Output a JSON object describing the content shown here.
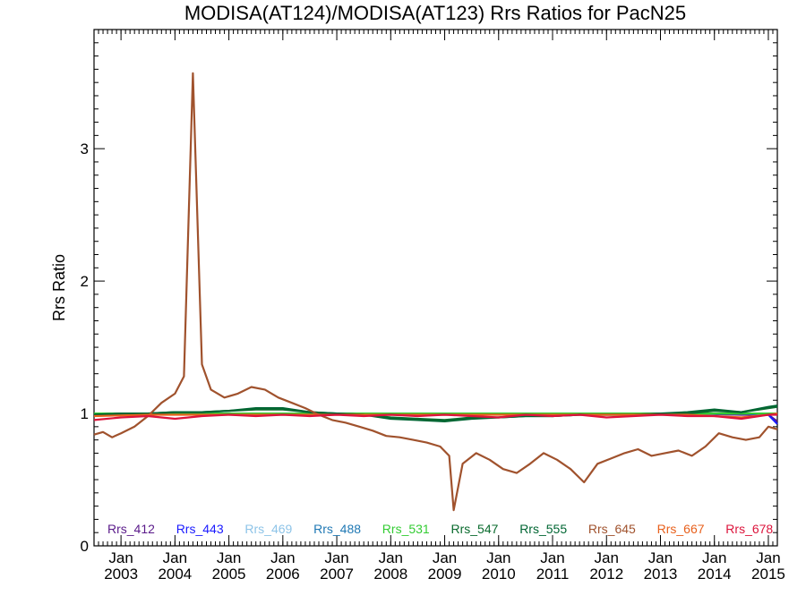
{
  "chart_data": {
    "type": "line",
    "title": "MODISA(AT124)/MODISA(AT123)  Rrs Ratios for PacN25",
    "ylabel": "Rrs Ratio",
    "xlabel": "",
    "xlim": [
      "2002-07",
      "2015-03"
    ],
    "ylim": [
      0,
      3.9
    ],
    "yticks": [
      0,
      1,
      2,
      3
    ],
    "ytick_labels": [
      "0",
      "1",
      "2",
      "3"
    ],
    "xticks": [
      "2003-01",
      "2004-01",
      "2005-01",
      "2006-01",
      "2007-01",
      "2008-01",
      "2009-01",
      "2010-01",
      "2011-01",
      "2012-01",
      "2013-01",
      "2014-01",
      "2015-01"
    ],
    "xtick_labels": [
      {
        "month": "Jan",
        "year": "2003"
      },
      {
        "month": "Jan",
        "year": "2004"
      },
      {
        "month": "Jan",
        "year": "2005"
      },
      {
        "month": "Jan",
        "year": "2006"
      },
      {
        "month": "Jan",
        "year": "2007"
      },
      {
        "month": "Jan",
        "year": "2008"
      },
      {
        "month": "Jan",
        "year": "2009"
      },
      {
        "month": "Jan",
        "year": "2010"
      },
      {
        "month": "Jan",
        "year": "2011"
      },
      {
        "month": "Jan",
        "year": "2012"
      },
      {
        "month": "Jan",
        "year": "2013"
      },
      {
        "month": "Jan",
        "year": "2014"
      },
      {
        "month": "Jan",
        "year": "2015"
      }
    ],
    "legend_position": "bottom-inside",
    "grid": false,
    "series": [
      {
        "name": "Rrs_412",
        "color": "#5a1a8a",
        "x": [
          "2002-07",
          "2003-07",
          "2004-07",
          "2005-07",
          "2006-07",
          "2007-07",
          "2008-07",
          "2009-07",
          "2010-07",
          "2011-07",
          "2012-07",
          "2013-07",
          "2014-07",
          "2015-01",
          "2015-03"
        ],
        "y": [
          0.99,
          1.0,
          1.0,
          1.0,
          1.0,
          1.0,
          0.99,
          1.0,
          0.99,
          1.0,
          0.99,
          1.0,
          0.99,
          0.99,
          0.94
        ]
      },
      {
        "name": "Rrs_443",
        "color": "#1a1aff",
        "x": [
          "2002-07",
          "2003-07",
          "2004-07",
          "2005-07",
          "2006-07",
          "2007-07",
          "2008-07",
          "2009-07",
          "2010-07",
          "2011-07",
          "2012-07",
          "2013-07",
          "2014-07",
          "2015-01",
          "2015-03"
        ],
        "y": [
          1.0,
          1.0,
          1.0,
          1.0,
          1.0,
          1.0,
          1.0,
          1.0,
          1.0,
          1.0,
          1.0,
          1.0,
          1.0,
          0.99,
          0.92
        ]
      },
      {
        "name": "Rrs_469",
        "color": "#8ec4e8",
        "x": [
          "2002-07",
          "2004-07",
          "2006-07",
          "2008-07",
          "2010-07",
          "2012-07",
          "2014-07",
          "2015-03"
        ],
        "y": [
          1.0,
          1.0,
          1.0,
          1.0,
          1.0,
          1.0,
          1.0,
          1.0
        ]
      },
      {
        "name": "Rrs_488",
        "color": "#1f78b4",
        "x": [
          "2002-07",
          "2004-07",
          "2006-07",
          "2008-07",
          "2010-07",
          "2012-07",
          "2014-07",
          "2015-03"
        ],
        "y": [
          1.0,
          1.0,
          1.0,
          1.0,
          1.0,
          1.0,
          1.0,
          1.0
        ]
      },
      {
        "name": "Rrs_531",
        "color": "#33cc33",
        "x": [
          "2002-07",
          "2004-07",
          "2006-07",
          "2008-07",
          "2010-07",
          "2012-07",
          "2014-07",
          "2015-03"
        ],
        "y": [
          1.0,
          1.0,
          1.0,
          1.0,
          1.0,
          1.0,
          1.0,
          1.0
        ]
      },
      {
        "name": "Rrs_547",
        "color": "#0a6b2e",
        "x": [
          "2002-07",
          "2003-01",
          "2003-07",
          "2004-01",
          "2004-07",
          "2005-01",
          "2005-07",
          "2006-01",
          "2006-07",
          "2007-01",
          "2007-07",
          "2008-01",
          "2008-07",
          "2009-01",
          "2009-07",
          "2010-01",
          "2010-07",
          "2011-01",
          "2011-07",
          "2012-01",
          "2012-07",
          "2013-01",
          "2013-07",
          "2014-01",
          "2014-07",
          "2015-01",
          "2015-03"
        ],
        "y": [
          0.99,
          1.0,
          1.0,
          1.01,
          1.01,
          1.02,
          1.03,
          1.03,
          1.01,
          1.0,
          0.99,
          0.97,
          0.96,
          0.95,
          0.97,
          0.97,
          0.98,
          0.98,
          0.99,
          0.99,
          0.99,
          1.0,
          1.0,
          1.02,
          1.01,
          1.04,
          1.05
        ]
      },
      {
        "name": "Rrs_555",
        "color": "#006633",
        "x": [
          "2002-07",
          "2003-01",
          "2003-07",
          "2004-01",
          "2004-07",
          "2005-01",
          "2005-07",
          "2006-01",
          "2006-07",
          "2007-01",
          "2007-07",
          "2008-01",
          "2008-07",
          "2009-01",
          "2009-07",
          "2010-01",
          "2010-07",
          "2011-01",
          "2011-07",
          "2012-01",
          "2012-07",
          "2013-01",
          "2013-07",
          "2014-01",
          "2014-07",
          "2015-01",
          "2015-03"
        ],
        "y": [
          0.99,
          1.0,
          1.0,
          1.01,
          1.01,
          1.02,
          1.04,
          1.04,
          1.01,
          1.0,
          0.99,
          0.96,
          0.95,
          0.94,
          0.96,
          0.97,
          0.98,
          0.98,
          0.99,
          0.99,
          0.99,
          1.0,
          1.01,
          1.03,
          1.01,
          1.05,
          1.06
        ]
      },
      {
        "name": "Rrs_645",
        "color": "#a0522d",
        "x": [
          "2002-07",
          "2002-09",
          "2002-11",
          "2003-01",
          "2003-04",
          "2003-07",
          "2003-10",
          "2004-01",
          "2004-03",
          "2004-05",
          "2004-07",
          "2004-09",
          "2004-12",
          "2005-03",
          "2005-06",
          "2005-09",
          "2005-12",
          "2006-03",
          "2006-06",
          "2006-09",
          "2006-12",
          "2007-03",
          "2007-06",
          "2007-09",
          "2007-12",
          "2008-03",
          "2008-06",
          "2008-09",
          "2008-12",
          "2009-02",
          "2009-03",
          "2009-05",
          "2009-08",
          "2009-11",
          "2010-02",
          "2010-05",
          "2010-08",
          "2010-11",
          "2011-02",
          "2011-05",
          "2011-08",
          "2011-11",
          "2012-02",
          "2012-05",
          "2012-08",
          "2012-11",
          "2013-02",
          "2013-05",
          "2013-08",
          "2013-11",
          "2014-02",
          "2014-05",
          "2014-08",
          "2014-11",
          "2015-01",
          "2015-03"
        ],
        "y": [
          0.84,
          0.86,
          0.82,
          0.85,
          0.9,
          0.98,
          1.08,
          1.15,
          1.28,
          3.57,
          1.37,
          1.18,
          1.12,
          1.15,
          1.2,
          1.18,
          1.12,
          1.08,
          1.04,
          0.99,
          0.95,
          0.93,
          0.9,
          0.87,
          0.83,
          0.82,
          0.8,
          0.78,
          0.75,
          0.68,
          0.27,
          0.62,
          0.7,
          0.65,
          0.58,
          0.55,
          0.62,
          0.7,
          0.65,
          0.58,
          0.48,
          0.62,
          0.66,
          0.7,
          0.73,
          0.68,
          0.7,
          0.72,
          0.68,
          0.75,
          0.85,
          0.82,
          0.8,
          0.82,
          0.9,
          0.88
        ]
      },
      {
        "name": "Rrs_667",
        "color": "#e8601c",
        "x": [
          "2002-07",
          "2003-07",
          "2004-07",
          "2005-07",
          "2006-07",
          "2007-07",
          "2008-07",
          "2009-07",
          "2010-07",
          "2011-07",
          "2012-07",
          "2013-07",
          "2014-07",
          "2015-01",
          "2015-03"
        ],
        "y": [
          0.98,
          0.99,
          0.99,
          0.99,
          0.99,
          0.99,
          0.99,
          0.99,
          0.99,
          0.99,
          0.99,
          0.99,
          0.97,
          0.99,
          1.0
        ]
      },
      {
        "name": "Rrs_678",
        "color": "#dc143c",
        "x": [
          "2002-07",
          "2003-01",
          "2003-07",
          "2004-01",
          "2004-07",
          "2005-01",
          "2005-07",
          "2006-01",
          "2006-07",
          "2007-01",
          "2007-07",
          "2008-01",
          "2008-07",
          "2009-01",
          "2009-07",
          "2010-01",
          "2010-07",
          "2011-01",
          "2011-07",
          "2012-01",
          "2012-07",
          "2013-01",
          "2013-07",
          "2014-01",
          "2014-07",
          "2015-01",
          "2015-03"
        ],
        "y": [
          0.95,
          0.97,
          0.98,
          0.96,
          0.98,
          0.99,
          0.98,
          0.99,
          0.98,
          0.99,
          0.98,
          0.99,
          0.98,
          0.99,
          0.98,
          0.97,
          0.99,
          0.98,
          0.99,
          0.97,
          0.98,
          0.99,
          0.98,
          0.98,
          0.96,
          0.99,
          0.99
        ]
      }
    ]
  }
}
